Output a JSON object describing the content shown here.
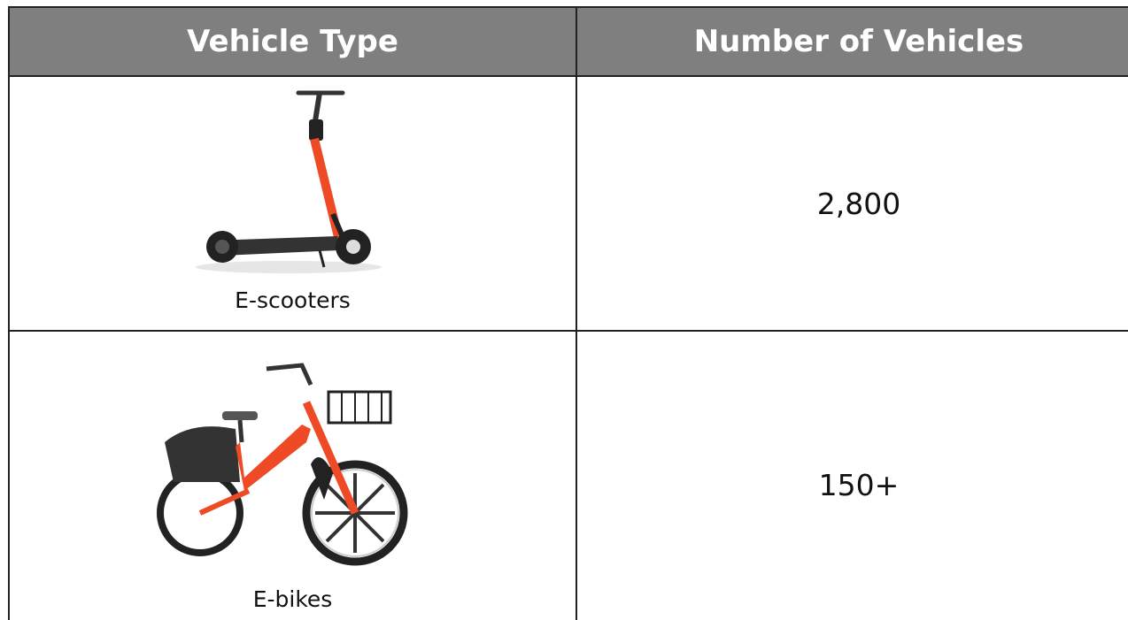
{
  "table": {
    "header": [
      "Vehicle Type",
      "Number of Vehicles"
    ],
    "rows": [
      [
        "E-scooters",
        "2,800"
      ],
      [
        "E-bikes",
        "150+"
      ]
    ]
  }
}
